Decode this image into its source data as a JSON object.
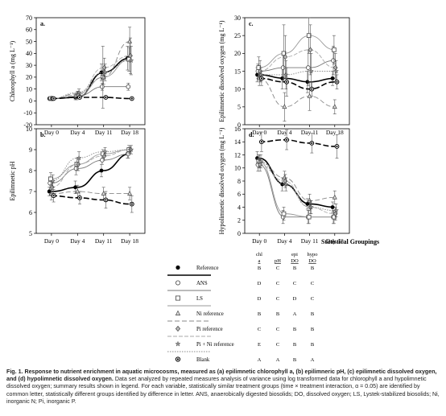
{
  "chart_data": [
    {
      "type": "line",
      "panel_label": "a.",
      "ylabel": "Chlorophyll a (mg L⁻¹)",
      "categories": [
        "Day 0",
        "Day 4",
        "Day 11",
        "Day 18"
      ],
      "ylim": [
        -20,
        70
      ],
      "yticks": [
        -20,
        -10,
        0,
        10,
        20,
        30,
        40,
        50,
        60,
        70
      ],
      "series": [
        {
          "name": "Reference",
          "values": [
            2,
            3,
            24,
            36
          ],
          "errors": [
            1,
            2,
            7,
            10
          ]
        },
        {
          "name": "ANS",
          "values": [
            2,
            4,
            12,
            12
          ],
          "errors": [
            1,
            2,
            3,
            3
          ]
        },
        {
          "name": "LS",
          "values": [
            2,
            4,
            20,
            35
          ],
          "errors": [
            1,
            3,
            26,
            10
          ]
        },
        {
          "name": "Ni reference",
          "values": [
            2,
            6,
            20,
            50
          ],
          "errors": [
            1,
            2,
            6,
            12
          ]
        },
        {
          "name": "Pi reference",
          "values": [
            2,
            5,
            28,
            38
          ],
          "errors": [
            1,
            3,
            8,
            15
          ]
        },
        {
          "name": "Pi + Ni reference",
          "values": [
            2,
            7,
            24,
            34
          ],
          "errors": [
            1,
            3,
            7,
            12
          ]
        },
        {
          "name": "Blank",
          "values": [
            2,
            3,
            3,
            2
          ],
          "errors": [
            1,
            1,
            1,
            1
          ]
        }
      ]
    },
    {
      "type": "line",
      "panel_label": "b.",
      "ylabel": "Epilimnetic pH",
      "categories": [
        "Day 0",
        "Day 4",
        "Day 11",
        "Day 18"
      ],
      "ylim": [
        5,
        10
      ],
      "yticks": [
        5,
        6,
        7,
        8,
        9,
        10
      ],
      "series": [
        {
          "name": "Reference",
          "values": [
            7.0,
            7.2,
            8.0,
            8.8
          ],
          "errors": [
            0.2,
            0.3,
            0.3,
            0.2
          ]
        },
        {
          "name": "ANS",
          "values": [
            7.4,
            8.1,
            8.5,
            8.8
          ],
          "errors": [
            0.3,
            0.3,
            0.2,
            0.2
          ]
        },
        {
          "name": "LS",
          "values": [
            7.6,
            8.3,
            8.8,
            9.0
          ],
          "errors": [
            0.3,
            0.3,
            0.2,
            0.2
          ]
        },
        {
          "name": "Ni reference",
          "values": [
            6.9,
            7.0,
            6.9,
            6.9
          ],
          "errors": [
            0.3,
            0.3,
            0.3,
            0.3
          ]
        },
        {
          "name": "Pi reference",
          "values": [
            7.2,
            8.3,
            8.7,
            9.0
          ],
          "errors": [
            0.3,
            0.3,
            0.2,
            0.2
          ]
        },
        {
          "name": "Pi + Ni reference",
          "values": [
            7.5,
            8.6,
            8.9,
            9.0
          ],
          "errors": [
            0.3,
            0.3,
            0.2,
            0.2
          ]
        },
        {
          "name": "Blank",
          "values": [
            6.8,
            6.7,
            6.6,
            6.4
          ],
          "errors": [
            0.3,
            0.3,
            0.4,
            0.4
          ]
        }
      ]
    },
    {
      "type": "line",
      "panel_label": "c.",
      "ylabel": "Epilimnetic dissolved oxygen (mg L⁻¹)",
      "categories": [
        "Day 0",
        "Day 4",
        "Day 11",
        "Day 18"
      ],
      "ylim": [
        0,
        30
      ],
      "yticks": [
        0,
        5,
        10,
        15,
        20,
        25,
        30
      ],
      "series": [
        {
          "name": "Reference",
          "values": [
            14,
            13,
            12,
            13
          ],
          "errors": [
            2,
            3,
            3,
            2
          ]
        },
        {
          "name": "ANS",
          "values": [
            15,
            16,
            16,
            18
          ],
          "errors": [
            2,
            4,
            5,
            4
          ]
        },
        {
          "name": "LS",
          "values": [
            16,
            20,
            25,
            21
          ],
          "errors": [
            3,
            8,
            5,
            4
          ]
        },
        {
          "name": "Ni reference",
          "values": [
            13,
            5,
            8,
            5
          ],
          "errors": [
            2,
            4,
            4,
            2
          ]
        },
        {
          "name": "Pi reference",
          "values": [
            15,
            19,
            21,
            16
          ],
          "errors": [
            3,
            6,
            7,
            4
          ]
        },
        {
          "name": "Pi + Ni reference",
          "values": [
            14,
            14,
            15,
            15
          ],
          "errors": [
            2,
            4,
            5,
            3
          ]
        },
        {
          "name": "Blank",
          "values": [
            13,
            12,
            10,
            12
          ],
          "errors": [
            2,
            4,
            2,
            2
          ]
        }
      ]
    },
    {
      "type": "line",
      "panel_label": "d.",
      "ylabel": "Hypolimnetic dissolved oxygen (mg L⁻¹)",
      "categories": [
        "Day 0",
        "Day 4",
        "Day 11",
        "Day 18"
      ],
      "ylim": [
        0,
        16
      ],
      "yticks": [
        0,
        2,
        4,
        6,
        8,
        10,
        12,
        14,
        16
      ],
      "series": [
        {
          "name": "Reference",
          "values": [
            11.5,
            7.5,
            4.5,
            4.0
          ],
          "errors": [
            1,
            1,
            0.8,
            0.8
          ]
        },
        {
          "name": "ANS",
          "values": [
            10.5,
            2.5,
            2.5,
            2.5
          ],
          "errors": [
            1,
            1,
            1,
            1
          ]
        },
        {
          "name": "LS",
          "values": [
            11.0,
            3.0,
            2.5,
            2.5
          ],
          "errors": [
            1,
            1,
            1,
            1
          ]
        },
        {
          "name": "Ni reference",
          "values": [
            11.0,
            8.5,
            5.0,
            5.5
          ],
          "errors": [
            1,
            1,
            1,
            1
          ]
        },
        {
          "name": "Pi reference",
          "values": [
            10.5,
            8.0,
            4.0,
            3.0
          ],
          "errors": [
            1,
            1,
            1,
            1
          ]
        },
        {
          "name": "Pi + Ni reference",
          "values": [
            11.0,
            7.5,
            4.0,
            3.5
          ],
          "errors": [
            1,
            1,
            1,
            1
          ]
        },
        {
          "name": "Blank",
          "values": [
            14.0,
            14.3,
            13.8,
            13.3
          ],
          "errors": [
            1.5,
            1.5,
            1.5,
            1.8
          ]
        }
      ]
    }
  ],
  "legend": {
    "title": "Statistical Groupings",
    "headers": [
      "chl a",
      "pH",
      "epi DO",
      "hypo DO"
    ],
    "rows": [
      {
        "label": "Reference",
        "groups": [
          "B",
          "C",
          "B",
          "B"
        ]
      },
      {
        "label": "ANS",
        "groups": [
          "D",
          "C",
          "C",
          "C"
        ]
      },
      {
        "label": "LS",
        "groups": [
          "D",
          "C",
          "D",
          "C"
        ]
      },
      {
        "label": "Ni reference",
        "groups": [
          "B",
          "B",
          "A",
          "B"
        ]
      },
      {
        "label": "Pi reference",
        "groups": [
          "C",
          "C",
          "B",
          "B"
        ]
      },
      {
        "label": "Pi + Ni reference",
        "groups": [
          "E",
          "C",
          "B",
          "B"
        ]
      },
      {
        "label": "Blank",
        "groups": [
          "A",
          "A",
          "B",
          "A"
        ]
      }
    ]
  },
  "caption": {
    "lead": "Fig. 1. Response to nutrient enrichment in aquatic microcosms, measured as (a) epilimnetic chlorophyll a, (b) epilimneric pH, (c) epilimnetic dissolved oxygen, and (d) hypolimnetic dissolved oxygen.",
    "body": "Data set analyzed by repeated measures analysis of variance using log transformed data for chlorophyll a and hypolimnetic dissolved oxygen; summary results shown in legend. For each variable, statistically similar treatment groups (time × treatment interaction, α = 0.05) are identified by common letter, statistically different groups identified by difference in letter. ANS, anaerobically digested biosolids; DO, dissolved oxygen; LS, Lystek-stabilized biosolids; Ni, inorganic N; Pi, inorganic P."
  }
}
